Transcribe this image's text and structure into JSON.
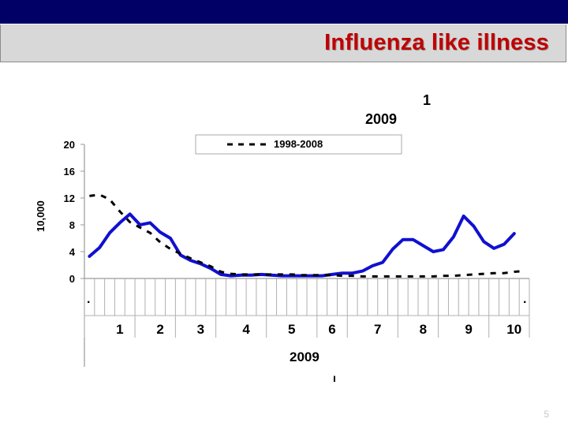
{
  "slide": {
    "title": "Influenza like illness",
    "page_number": "5"
  },
  "colors": {
    "header_bar": "#000066",
    "title_band": "#d8d8d8",
    "title_text": "#c00000",
    "current_series": "#1010d0",
    "baseline_series": "#000000"
  },
  "chart_data": {
    "type": "line",
    "title_fragment": "1",
    "title_year": "2009",
    "ylabel": "10,000",
    "xlabel": "2009",
    "xlabel_mark": "ı",
    "edge_marks": [
      ".",
      "."
    ],
    "ylim": [
      0,
      20
    ],
    "yticks": [
      0,
      4,
      8,
      12,
      16,
      20
    ],
    "x_weeks": 44,
    "months": [
      {
        "label": "1",
        "week_center": 3.5
      },
      {
        "label": "2",
        "week_center": 7.5
      },
      {
        "label": "3",
        "week_center": 11.5
      },
      {
        "label": "4",
        "week_center": 16
      },
      {
        "label": "5",
        "week_center": 20.5
      },
      {
        "label": "6",
        "week_center": 24.5
      },
      {
        "label": "7",
        "week_center": 29
      },
      {
        "label": "8",
        "week_center": 33.5
      },
      {
        "label": "9",
        "week_center": 38
      },
      {
        "label": "10",
        "week_center": 42.5
      }
    ],
    "series": [
      {
        "name": "",
        "style": "solid",
        "values": [
          3.3,
          4.6,
          6.8,
          8.3,
          9.6,
          8.0,
          8.3,
          6.9,
          6.0,
          3.5,
          2.7,
          2.2,
          1.5,
          0.6,
          0.4,
          0.5,
          0.5,
          0.6,
          0.5,
          0.4,
          0.4,
          0.4,
          0.4,
          0.4,
          0.6,
          0.8,
          0.8,
          1.1,
          1.9,
          2.4,
          4.4,
          5.8,
          5.8,
          4.9,
          4.0,
          4.3,
          6.2,
          9.3,
          7.8,
          5.5,
          4.5,
          5.1,
          6.7
        ]
      },
      {
        "name": "1998-2008",
        "style": "dashed",
        "values": [
          12.3,
          12.5,
          11.8,
          10.0,
          8.4,
          7.6,
          6.8,
          5.4,
          4.4,
          3.7,
          3.0,
          2.4,
          1.8,
          1.0,
          0.7,
          0.6,
          0.6,
          0.6,
          0.6,
          0.6,
          0.6,
          0.5,
          0.5,
          0.5,
          0.5,
          0.4,
          0.4,
          0.3,
          0.3,
          0.3,
          0.3,
          0.3,
          0.3,
          0.3,
          0.3,
          0.4,
          0.4,
          0.5,
          0.6,
          0.7,
          0.8,
          0.8,
          1.0,
          1.1
        ]
      }
    ]
  }
}
